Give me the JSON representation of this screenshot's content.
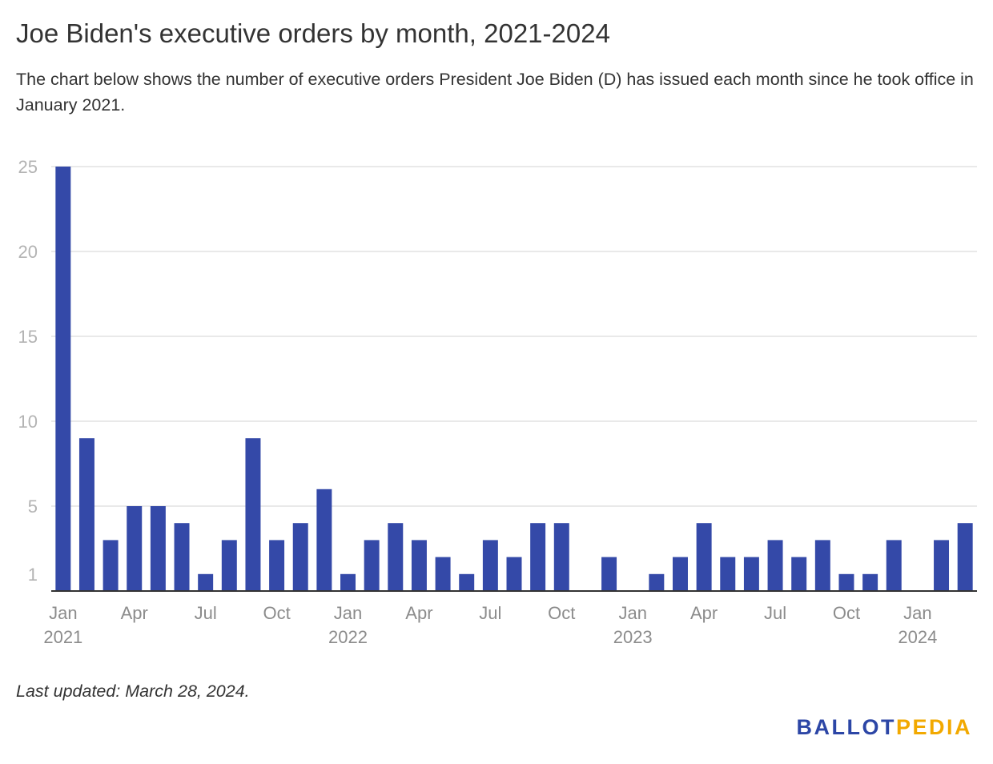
{
  "header": {
    "title": "Joe Biden's executive orders by month, 2021-2024",
    "subtitle": "The chart below shows the number of executive orders President Joe Biden (D) has issued each month since he took office in January 2021."
  },
  "footer": {
    "note": "Last updated: March 28, 2024.",
    "logo_part1": "BALLOT",
    "logo_part2": "PEDIA"
  },
  "colors": {
    "bar": "#3449a8",
    "grid": "#e2e2e2",
    "axis": "#333333",
    "tick_text": "#b3b3b3",
    "xtick_text": "#8c8c8c",
    "logo_blue": "#2c46a6",
    "logo_gold": "#f2a900"
  },
  "chart_data": {
    "type": "bar",
    "title": "",
    "xlabel": "",
    "ylabel": "",
    "ylim": [
      0,
      25
    ],
    "y_ticks": [
      1,
      5,
      10,
      15,
      20,
      25
    ],
    "grid": true,
    "legend": "none",
    "categories": [
      "2021-01",
      "2021-02",
      "2021-03",
      "2021-04",
      "2021-05",
      "2021-06",
      "2021-07",
      "2021-08",
      "2021-09",
      "2021-10",
      "2021-11",
      "2021-12",
      "2022-01",
      "2022-02",
      "2022-03",
      "2022-04",
      "2022-05",
      "2022-06",
      "2022-07",
      "2022-08",
      "2022-09",
      "2022-10",
      "2022-11",
      "2022-12",
      "2023-01",
      "2023-02",
      "2023-03",
      "2023-04",
      "2023-05",
      "2023-06",
      "2023-07",
      "2023-08",
      "2023-09",
      "2023-10",
      "2023-11",
      "2023-12",
      "2024-01",
      "2024-02",
      "2024-03"
    ],
    "values": [
      25,
      9,
      3,
      5,
      5,
      4,
      1,
      3,
      9,
      3,
      4,
      6,
      1,
      3,
      4,
      3,
      2,
      1,
      3,
      2,
      4,
      4,
      0,
      2,
      0,
      1,
      2,
      4,
      2,
      2,
      3,
      2,
      3,
      1,
      1,
      3,
      0,
      3,
      4
    ],
    "x_tick_labels": [
      {
        "index": 0,
        "month": "Jan",
        "year": "2021"
      },
      {
        "index": 3,
        "month": "Apr",
        "year": ""
      },
      {
        "index": 6,
        "month": "Jul",
        "year": ""
      },
      {
        "index": 9,
        "month": "Oct",
        "year": ""
      },
      {
        "index": 12,
        "month": "Jan",
        "year": "2022"
      },
      {
        "index": 15,
        "month": "Apr",
        "year": ""
      },
      {
        "index": 18,
        "month": "Jul",
        "year": ""
      },
      {
        "index": 21,
        "month": "Oct",
        "year": ""
      },
      {
        "index": 24,
        "month": "Jan",
        "year": "2023"
      },
      {
        "index": 27,
        "month": "Apr",
        "year": ""
      },
      {
        "index": 30,
        "month": "Jul",
        "year": ""
      },
      {
        "index": 33,
        "month": "Oct",
        "year": ""
      },
      {
        "index": 36,
        "month": "Jan",
        "year": "2024"
      }
    ]
  }
}
